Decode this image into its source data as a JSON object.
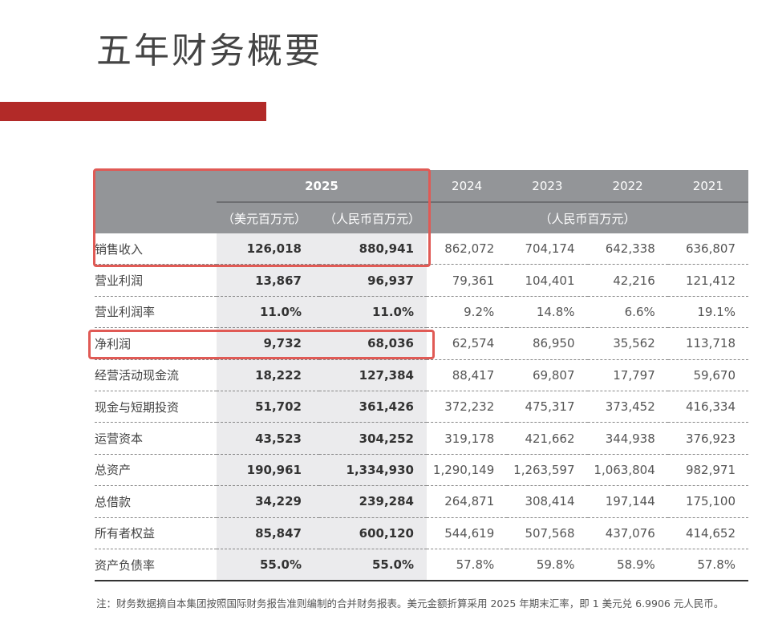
{
  "title": "五年财务概要",
  "colors": {
    "accent_bar": "#b22a28",
    "header_bg": "#939598",
    "highlight_col_bg": "#ebebed",
    "highlight_box": "#e05a55"
  },
  "table": {
    "header": {
      "year_2025": "2025",
      "years": [
        "2024",
        "2023",
        "2022",
        "2021"
      ],
      "unit_usd": "（美元百万元）",
      "unit_cny": "（人民币百万元）",
      "unit_history": "（人民币百万元）"
    },
    "rows": [
      {
        "label": "销售收入",
        "usd_2025": "126,018",
        "cny_2025": "880,941",
        "y2024": "862,072",
        "y2023": "704,174",
        "y2022": "642,338",
        "y2021": "636,807",
        "highlighted": true
      },
      {
        "label": "营业利润",
        "usd_2025": "13,867",
        "cny_2025": "96,937",
        "y2024": "79,361",
        "y2023": "104,401",
        "y2022": "42,216",
        "y2021": "121,412"
      },
      {
        "label": "营业利润率",
        "usd_2025": "11.0%",
        "cny_2025": "11.0%",
        "y2024": "9.2%",
        "y2023": "14.8%",
        "y2022": "6.6%",
        "y2021": "19.1%"
      },
      {
        "label": "净利润",
        "usd_2025": "9,732",
        "cny_2025": "68,036",
        "y2024": "62,574",
        "y2023": "86,950",
        "y2022": "35,562",
        "y2021": "113,718",
        "highlighted": true
      },
      {
        "label": "经营活动现金流",
        "usd_2025": "18,222",
        "cny_2025": "127,384",
        "y2024": "88,417",
        "y2023": "69,807",
        "y2022": "17,797",
        "y2021": "59,670"
      },
      {
        "label": "现金与短期投资",
        "usd_2025": "51,702",
        "cny_2025": "361,426",
        "y2024": "372,232",
        "y2023": "475,317",
        "y2022": "373,452",
        "y2021": "416,334"
      },
      {
        "label": "运营资本",
        "usd_2025": "43,523",
        "cny_2025": "304,252",
        "y2024": "319,178",
        "y2023": "421,662",
        "y2022": "344,938",
        "y2021": "376,923"
      },
      {
        "label": "总资产",
        "usd_2025": "190,961",
        "cny_2025": "1,334,930",
        "y2024": "1,290,149",
        "y2023": "1,263,597",
        "y2022": "1,063,804",
        "y2021": "982,971"
      },
      {
        "label": "总借款",
        "usd_2025": "34,229",
        "cny_2025": "239,284",
        "y2024": "264,871",
        "y2023": "308,414",
        "y2022": "197,144",
        "y2021": "175,100"
      },
      {
        "label": "所有者权益",
        "usd_2025": "85,847",
        "cny_2025": "600,120",
        "y2024": "544,619",
        "y2023": "507,568",
        "y2022": "437,076",
        "y2021": "414,652"
      },
      {
        "label": "资产负债率",
        "usd_2025": "55.0%",
        "cny_2025": "55.0%",
        "y2024": "57.8%",
        "y2023": "59.8%",
        "y2022": "58.9%",
        "y2021": "57.8%"
      }
    ]
  },
  "footnote": "注：财务数据摘自本集团按照国际财务报告准则编制的合并财务报表。美元金额折算采用 2025 年期末汇率，即 1 美元兑 6.9906 元人民币。"
}
